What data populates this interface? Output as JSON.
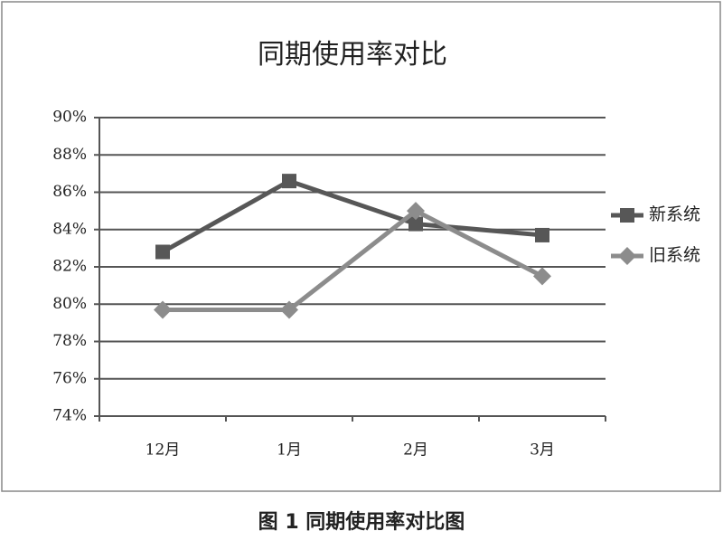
{
  "chart_data": {
    "type": "line",
    "title": "同期使用率对比",
    "caption": "图 1  同期使用率对比图",
    "categories": [
      "12月",
      "1月",
      "2月",
      "3月"
    ],
    "series": [
      {
        "name": "新系统",
        "color": "#575757",
        "marker": "square",
        "values": [
          82.8,
          86.6,
          84.3,
          83.7
        ]
      },
      {
        "name": "旧系统",
        "color": "#8c8c8c",
        "marker": "diamond",
        "values": [
          79.7,
          79.7,
          85.0,
          81.5
        ]
      }
    ],
    "ylim": [
      74,
      90
    ],
    "yticks": [
      {
        "value": 74,
        "label": "74%"
      },
      {
        "value": 76,
        "label": "76%"
      },
      {
        "value": 78,
        "label": "78%"
      },
      {
        "value": 80,
        "label": "80%"
      },
      {
        "value": 82,
        "label": "82%"
      },
      {
        "value": 84,
        "label": "84%"
      },
      {
        "value": 86,
        "label": "86%"
      },
      {
        "value": 88,
        "label": "88%"
      },
      {
        "value": 90,
        "label": "90%"
      }
    ],
    "grid": true,
    "legend": "right"
  }
}
